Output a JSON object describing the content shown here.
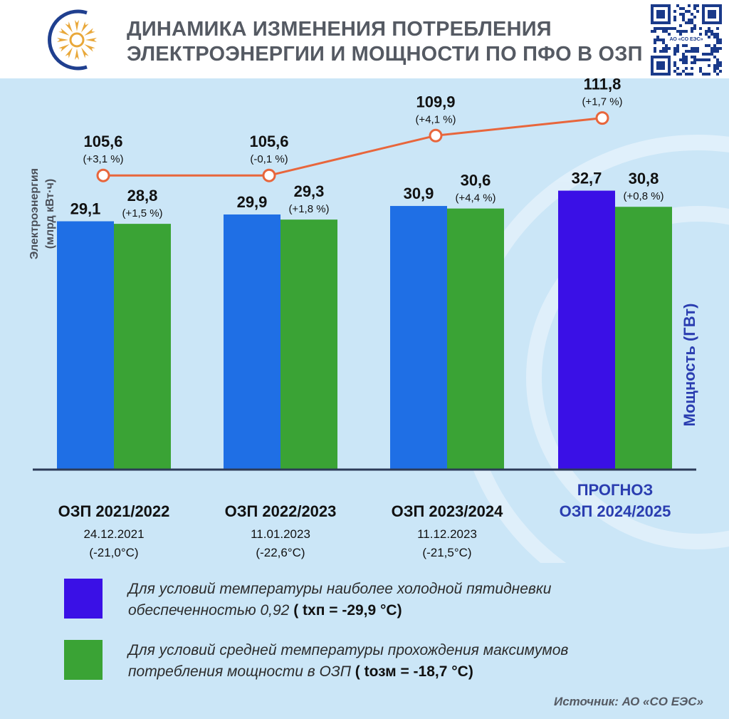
{
  "header": {
    "title_line1": "ДИНАМИКА ИЗМЕНЕНИЯ ПОТРЕБЛЕНИЯ",
    "title_line2": "ЭЛЕКТРОЭНЕРГИИ И МОЩНОСТИ ПО ПФО В ОЗП",
    "qr_label": "АО «СО ЕЭС»"
  },
  "colors": {
    "blue": "#1f6fe5",
    "violet": "#3a10e6",
    "green": "#3aa335",
    "line": "#e8663c",
    "panel": "#cbe6f7",
    "axis": "#2c3b58"
  },
  "icons": [
    "logo-icon",
    "qr-code-icon"
  ],
  "chart_data": {
    "type": "bar",
    "categories": [
      "ОЗП 2021/2022",
      "ОЗП 2022/2023",
      "ОЗП 2023/2024",
      "ПРОГНОЗ ОЗП 2024/2025"
    ],
    "category_dates": [
      "24.12.2021",
      "11.01.2023",
      "11.12.2023",
      ""
    ],
    "category_temps": [
      "(-21,0°C)",
      "(-22,6°C)",
      "(-21,5°C)",
      ""
    ],
    "forecast_line1": "ПРОГНОЗ",
    "forecast_line2": "ОЗП 2024/2025",
    "ylabel_left_line1": "Электроэнергия",
    "ylabel_left_line2": "(млрд кВт·ч)",
    "ylabel_right": "Мощность (ГВт)",
    "series": [
      {
        "name": "Для условий температуры наиболее холодной пятидневки обеспеченностью 0,92 ( tхп = -29,9 °C)",
        "values": [
          29.1,
          29.9,
          30.9,
          32.7
        ],
        "labels": [
          "29,1",
          "29,9",
          "30,9",
          "32,7"
        ]
      },
      {
        "name": "Для условий средней температуры прохождения максимумов потребления мощности в ОЗП ( tозм = -18,7 °C)",
        "values": [
          28.8,
          29.3,
          30.6,
          30.8
        ],
        "labels": [
          "28,8",
          "29,3",
          "30,6",
          "30,8"
        ],
        "pct": [
          "(+1,5 %)",
          "(+1,8 %)",
          "(+4,4 %)",
          "(+0,8 %)"
        ]
      }
    ],
    "line_series": {
      "values": [
        105.6,
        105.6,
        109.9,
        111.8
      ],
      "labels": [
        "105,6",
        "105,6",
        "109,9",
        "111,8"
      ],
      "pct": [
        "(+3,1 %)",
        "(-0,1 %)",
        "(+4,1 %)",
        "(+1,7 %)"
      ]
    },
    "ylim_power": [
      0,
      33.5
    ],
    "ylim_energy": [
      103,
      113
    ]
  },
  "legend": {
    "item1_line1": "Для условий температуры наиболее холодной пятидневки",
    "item1_line2_text": "обеспеченностью 0,92",
    "item1_line2_bold": "( tхп = -29,9 °C)",
    "item2_line1": "Для условий средней температуры прохождения максимумов",
    "item2_line2_text": "потребления мощности в ОЗП",
    "item2_line2_bold": "( tозм = -18,7 °C)"
  },
  "source": "Источник: АО «СО ЕЭС»"
}
